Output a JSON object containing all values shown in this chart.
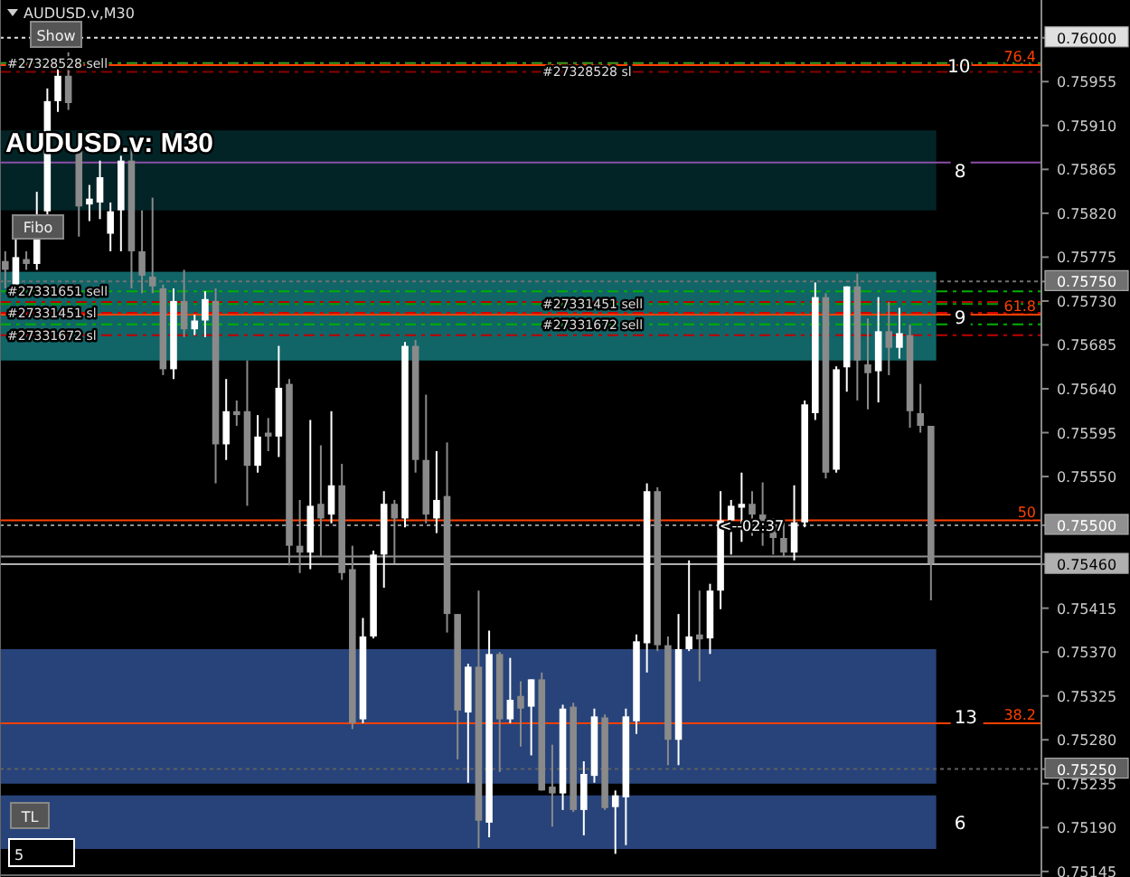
{
  "chart_data": {
    "type": "candlestick",
    "title": "AUDUSD.v,M30",
    "subtitle": "AUDUSD.v: M30",
    "categories": [
      null,
      null,
      null,
      null,
      null,
      null,
      null,
      null,
      null,
      null,
      null,
      null,
      null,
      null,
      null,
      null,
      null,
      null,
      null,
      null,
      null,
      null,
      null,
      null,
      null,
      null,
      null,
      null,
      null,
      null,
      null,
      null,
      null,
      null,
      null,
      null,
      null,
      null,
      null,
      null,
      null,
      null,
      null,
      null,
      null,
      null,
      null,
      null,
      null,
      null,
      null,
      null,
      null,
      null,
      null,
      null,
      null,
      null,
      null,
      null,
      null,
      null,
      null,
      null,
      null,
      null,
      null,
      null,
      null,
      null,
      null,
      null,
      null,
      null,
      null,
      null,
      null,
      null,
      null,
      null,
      null,
      null,
      null,
      null,
      null,
      null,
      null,
      null,
      null,
      null,
      null,
      null,
      null,
      null,
      null,
      null,
      null,
      null,
      null
    ],
    "colors": [
      "#8a8a8a",
      "#ffffff",
      "#8a8a8a",
      "#ffffff",
      "#ffffff",
      "#ffffff",
      "#8a8a8a",
      "#8a8a8a",
      "#ffffff",
      "#ffffff",
      "#ffffff",
      "#ffffff",
      "#8a8a8a",
      "#8a8a8a",
      "#8a8a8a",
      "#8a8a8a",
      "#ffffff",
      "#8a8a8a",
      "#ffffff",
      "#ffffff",
      "#8a8a8a",
      "#ffffff",
      "#8a8a8a",
      "#8a8a8a",
      "#ffffff",
      "#8a8a8a",
      "#ffffff",
      "#8a8a8a",
      "#8a8a8a",
      "#ffffff",
      "#8a8a8a",
      "#ffffff",
      "#8a8a8a",
      "#8a8a8a",
      "#ffffff",
      "#ffffff",
      "#ffffff",
      "#8a8a8a",
      "#ffffff",
      "#8a8a8a",
      "#8a8a8a",
      "#ffffff",
      "#8a8a8a",
      "#8a8a8a",
      "#ffffff",
      "#8a8a8a",
      "#ffffff",
      "#8a8a8a",
      "#ffffff",
      "#8a8a8a",
      "#ffffff",
      "#8a8a8a",
      "#8a8a8a",
      "#ffffff",
      "#8a8a8a",
      "#ffffff",
      "#ffffff",
      "#8a8a8a",
      "#ffffff",
      "#ffffff",
      "#ffffff",
      "#ffffff",
      "#8a8a8a",
      "#8a8a8a",
      "#ffffff",
      "#ffffff",
      "#8a8a8a",
      "#ffffff",
      "#ffffff",
      "#ffffff",
      "#ffffff",
      "#8a8a8a",
      "#8a8a8a",
      "#8a8a8a",
      "#8a8a8a",
      "#ffffff",
      "#ffffff",
      "#ffffff",
      "#8a8a8a",
      "#ffffff",
      "#ffffff",
      "#8a8a8a",
      "#8a8a8a",
      "#ffffff",
      "#8a8a8a",
      "#ffffff",
      "#8a8a8a",
      "#8a8a8a",
      "#8a8a8a",
      null,
      null,
      null,
      null,
      null,
      null,
      null,
      null,
      null,
      null
    ],
    "ohlc": [
      [
        0.75771,
        0.75781,
        0.75743,
        0.75762
      ],
      [
        0.75747,
        0.75794,
        0.75738,
        0.75775
      ],
      [
        0.75773,
        0.75781,
        0.75762,
        0.75768
      ],
      [
        0.75768,
        0.75842,
        0.75762,
        0.75796
      ],
      [
        0.75822,
        0.75948,
        0.75818,
        0.75935
      ],
      [
        0.75935,
        0.75976,
        0.75924,
        0.75961
      ],
      [
        0.75961,
        0.75985,
        0.75926,
        0.75933
      ],
      [
        0.75889,
        0.75892,
        0.75796,
        0.75827
      ],
      [
        0.75829,
        0.75849,
        0.75812,
        0.75835
      ],
      [
        0.75831,
        0.75874,
        0.75814,
        0.75857
      ],
      [
        0.75799,
        0.75831,
        0.75781,
        0.75822
      ],
      [
        0.75823,
        0.75879,
        0.75781,
        0.75874
      ],
      [
        0.75874,
        0.75892,
        0.75743,
        0.75781
      ],
      [
        0.75781,
        0.75823,
        0.75738,
        0.75756
      ],
      [
        0.75755,
        0.75836,
        0.75738,
        0.75745
      ],
      [
        0.75743,
        0.75747,
        0.75654,
        0.7566
      ],
      [
        0.7566,
        0.75743,
        0.7565,
        0.7573
      ],
      [
        0.7573,
        0.75762,
        0.75693,
        0.75701
      ],
      [
        0.75701,
        0.75716,
        0.75695,
        0.7571
      ],
      [
        0.7571,
        0.7574,
        0.75693,
        0.75732
      ],
      [
        0.7573,
        0.75743,
        0.75543,
        0.75583
      ],
      [
        0.75583,
        0.7565,
        0.75567,
        0.75617
      ],
      [
        0.75617,
        0.75628,
        0.75602,
        0.75613
      ],
      [
        0.75617,
        0.75669,
        0.7552,
        0.75561
      ],
      [
        0.75561,
        0.75613,
        0.75554,
        0.75591
      ],
      [
        0.75595,
        0.7561,
        0.75576,
        0.75591
      ],
      [
        0.75591,
        0.75684,
        0.7557,
        0.75641
      ],
      [
        0.75645,
        0.7565,
        0.75459,
        0.75479
      ],
      [
        0.75479,
        0.75526,
        0.75451,
        0.75472
      ],
      [
        0.75472,
        0.75608,
        0.75455,
        0.7552
      ],
      [
        0.75522,
        0.75582,
        0.75468,
        0.75507
      ],
      [
        0.75511,
        0.75617,
        0.75502,
        0.75541
      ],
      [
        0.75541,
        0.75563,
        0.75444,
        0.75451
      ],
      [
        0.75455,
        0.75479,
        0.75291,
        0.75297
      ],
      [
        0.75301,
        0.75405,
        0.75297,
        0.75386
      ],
      [
        0.75386,
        0.75474,
        0.75384,
        0.7547
      ],
      [
        0.7547,
        0.75535,
        0.75436,
        0.75522
      ],
      [
        0.75522,
        0.75526,
        0.75461,
        0.75507
      ],
      [
        0.75507,
        0.75688,
        0.75498,
        0.75684
      ],
      [
        0.75684,
        0.7569,
        0.75554,
        0.75567
      ],
      [
        0.75567,
        0.75634,
        0.75502,
        0.75511
      ],
      [
        0.75507,
        0.75576,
        0.75492,
        0.75526
      ],
      [
        0.7553,
        0.75585,
        0.7539,
        0.75409
      ],
      [
        0.75409,
        0.75409,
        0.7526,
        0.7531
      ],
      [
        0.75308,
        0.75358,
        0.75236,
        0.75355
      ],
      [
        0.75355,
        0.75433,
        0.75169,
        0.75197
      ],
      [
        0.75195,
        0.75392,
        0.7518,
        0.75368
      ],
      [
        0.75368,
        0.7537,
        0.75247,
        0.75301
      ],
      [
        0.75301,
        0.75364,
        0.75297,
        0.75321
      ],
      [
        0.75325,
        0.7534,
        0.75273,
        0.75312
      ],
      [
        0.75314,
        0.75342,
        0.75264,
        0.75342
      ],
      [
        0.75342,
        0.75349,
        0.75228,
        0.75228
      ],
      [
        0.75232,
        0.75275,
        0.75191,
        0.75225
      ],
      [
        0.75225,
        0.75316,
        0.75208,
        0.75312
      ],
      [
        0.75314,
        0.75318,
        0.75206,
        0.75208
      ],
      [
        0.75208,
        0.75258,
        0.75182,
        0.75245
      ],
      [
        0.75243,
        0.75312,
        0.75236,
        0.75304
      ],
      [
        0.75303,
        0.75306,
        0.75208,
        0.7521
      ],
      [
        0.75211,
        0.75228,
        0.75163,
        0.75223
      ],
      [
        0.75221,
        0.75312,
        0.75172,
        0.75304
      ],
      [
        0.75299,
        0.75388,
        0.75286,
        0.75381
      ],
      [
        0.75379,
        0.75543,
        0.75349,
        0.75535
      ],
      [
        0.75535,
        0.75539,
        0.75371,
        0.75377
      ],
      [
        0.75377,
        0.75386,
        0.75254,
        0.7528
      ],
      [
        0.7528,
        0.75409,
        0.75254,
        0.75373
      ],
      [
        0.75373,
        0.75464,
        0.75371,
        0.75386
      ],
      [
        0.75388,
        0.75433,
        0.7534,
        0.75383
      ],
      [
        0.75384,
        0.7544,
        0.75368,
        0.75433
      ],
      [
        0.75433,
        0.75535,
        0.75414,
        0.75505
      ],
      [
        0.75505,
        0.75526,
        0.7547,
        0.7552
      ],
      [
        0.75518,
        0.75554,
        0.75483,
        0.75522
      ],
      [
        0.75522,
        0.75535,
        0.75489,
        0.75511
      ],
      [
        0.75511,
        0.75544,
        0.75479,
        0.75498
      ],
      [
        0.755,
        0.75507,
        0.7547,
        0.75487
      ],
      [
        0.75487,
        0.75503,
        0.75468,
        0.75472
      ],
      [
        0.75472,
        0.75541,
        0.75464,
        0.75503
      ],
      [
        0.75503,
        0.75628,
        0.75498,
        0.75624
      ],
      [
        0.75615,
        0.75749,
        0.75608,
        0.75734
      ],
      [
        0.75734,
        0.75738,
        0.75548,
        0.75554
      ],
      [
        0.75557,
        0.75663,
        0.75554,
        0.7566
      ],
      [
        0.75662,
        0.75745,
        0.75637,
        0.75745
      ],
      [
        0.75745,
        0.75758,
        0.75628,
        0.75669
      ],
      [
        0.75665,
        0.75712,
        0.75619,
        0.75656
      ],
      [
        0.75658,
        0.75734,
        0.75626,
        0.75699
      ],
      [
        0.75699,
        0.75729,
        0.75654,
        0.75682
      ],
      [
        0.75682,
        0.75723,
        0.75671,
        0.75697
      ],
      [
        0.75695,
        0.75706,
        0.756,
        0.75617
      ],
      [
        0.75615,
        0.75645,
        0.75595,
        0.75602
      ],
      [
        0.75602,
        0.75602,
        0.75423,
        0.75461
      ],
      null,
      null,
      null,
      null,
      null,
      null,
      null,
      null,
      null,
      null
    ],
    "ylim": [
      0.75143,
      0.76035
    ],
    "yticks": [
      {
        "value": 0.75145,
        "label": "0.75145"
      },
      {
        "value": 0.7519,
        "label": "0.75190"
      },
      {
        "value": 0.75235,
        "label": "0.75235"
      },
      {
        "value": 0.7525,
        "label": "0.75250"
      },
      {
        "value": 0.7528,
        "label": "0.75280"
      },
      {
        "value": 0.75325,
        "label": "0.75325"
      },
      {
        "value": 0.7537,
        "label": "0.75370"
      },
      {
        "value": 0.75415,
        "label": "0.75415"
      },
      {
        "value": 0.7546,
        "label": "0.75460"
      },
      {
        "value": 0.755,
        "label": "0.75500"
      },
      {
        "value": 0.7555,
        "label": "0.75550"
      },
      {
        "value": 0.75595,
        "label": "0.75595"
      },
      {
        "value": 0.7564,
        "label": "0.75640"
      },
      {
        "value": 0.75685,
        "label": "0.75685"
      },
      {
        "value": 0.7573,
        "label": "0.75730"
      },
      {
        "value": 0.7575,
        "label": "0.75750"
      },
      {
        "value": 0.75775,
        "label": "0.75775"
      },
      {
        "value": 0.7582,
        "label": "0.75820"
      },
      {
        "value": 0.75865,
        "label": "0.75865"
      },
      {
        "value": 0.7591,
        "label": "0.75910"
      },
      {
        "value": 0.75955,
        "label": "0.75955"
      },
      {
        "value": 0.76,
        "label": "0.76000"
      }
    ],
    "ref_lines": [
      {
        "axis": "y",
        "value": 0.76,
        "color": "#e0e0e0",
        "line_style": "dotted"
      },
      {
        "axis": "y",
        "value": 0.7575,
        "color": "#707070",
        "line_style": "dotted"
      },
      {
        "axis": "y",
        "value": 0.755,
        "color": "#909090",
        "line_style": "dotted"
      },
      {
        "axis": "y",
        "value": 0.7525,
        "color": "#606060",
        "line_style": "dotted"
      },
      {
        "axis": "y",
        "value": 0.75468,
        "color": "#909090",
        "line_style": "solid"
      },
      {
        "axis": "y",
        "value": 0.7546,
        "color": "#b0b0b0",
        "line_style": "solid"
      },
      {
        "axis": "y",
        "value": 0.75872,
        "color": "#8a4fa8",
        "line_style": "solid"
      },
      {
        "axis": "y",
        "value": 0.75974,
        "label": "#27328528 sell",
        "color": "#3c9a1c",
        "line_style": "dashed"
      },
      {
        "axis": "y",
        "value": 0.75965,
        "label": "#27328528 sl",
        "color": "#8b0000",
        "line_style": "dashed"
      },
      {
        "axis": "y",
        "value": 0.7574,
        "label": "#27331651 sell",
        "color": "#00b000",
        "line_style": "dashed"
      },
      {
        "axis": "y",
        "value": 0.75729,
        "color": "#c00000",
        "line_style": "dashed"
      },
      {
        "axis": "y",
        "value": 0.75727,
        "label": "#27331451 sell",
        "color": "#00a000",
        "line_style": "dashed"
      },
      {
        "axis": "y",
        "value": 0.75718,
        "label": "#27331451 sl",
        "color": "#d00000",
        "line_style": "dashed"
      },
      {
        "axis": "y",
        "value": 0.75706,
        "label": "#27331672 sell",
        "color": "#00b000",
        "line_style": "dashed"
      },
      {
        "axis": "y",
        "value": 0.75695,
        "label": "#27331672 sl",
        "color": "#c00000",
        "line_style": "dashed"
      },
      {
        "axis": "y",
        "value": 0.75972,
        "color": "#ff4000",
        "line_style": "solid"
      },
      {
        "axis": "y",
        "value": 0.75716,
        "color": "#ff4000",
        "line_style": "solid"
      },
      {
        "axis": "y",
        "value": 0.75505,
        "color": "#ff4000",
        "line_style": "solid"
      },
      {
        "axis": "y",
        "value": 0.75297,
        "color": "#ff4000",
        "line_style": "solid"
      }
    ],
    "bands": [
      {
        "axis": "y",
        "from": 0.75823,
        "to": 0.75905,
        "label": "8",
        "color": "#03282b"
      },
      {
        "axis": "y",
        "from": 0.75669,
        "to": 0.7576,
        "label": "9",
        "color": "#137072"
      },
      {
        "axis": "y",
        "from": 0.75235,
        "to": 0.75373,
        "label": "13",
        "color": "#2b4a86"
      },
      {
        "axis": "y",
        "from": 0.75168,
        "to": 0.75223,
        "label": "6",
        "color": "#2b4a86"
      }
    ],
    "annotations": [
      "Show",
      "Fibo",
      "TL",
      "5",
      "10",
      {
        "text": "<--02:37",
        "y": 0.755
      },
      {
        "text": "76.4",
        "y": 0.75972
      },
      {
        "text": "61.8",
        "y": 0.75716
      },
      {
        "text": "50",
        "y": 0.75505
      },
      {
        "text": "38.2",
        "y": 0.75297
      }
    ]
  }
}
